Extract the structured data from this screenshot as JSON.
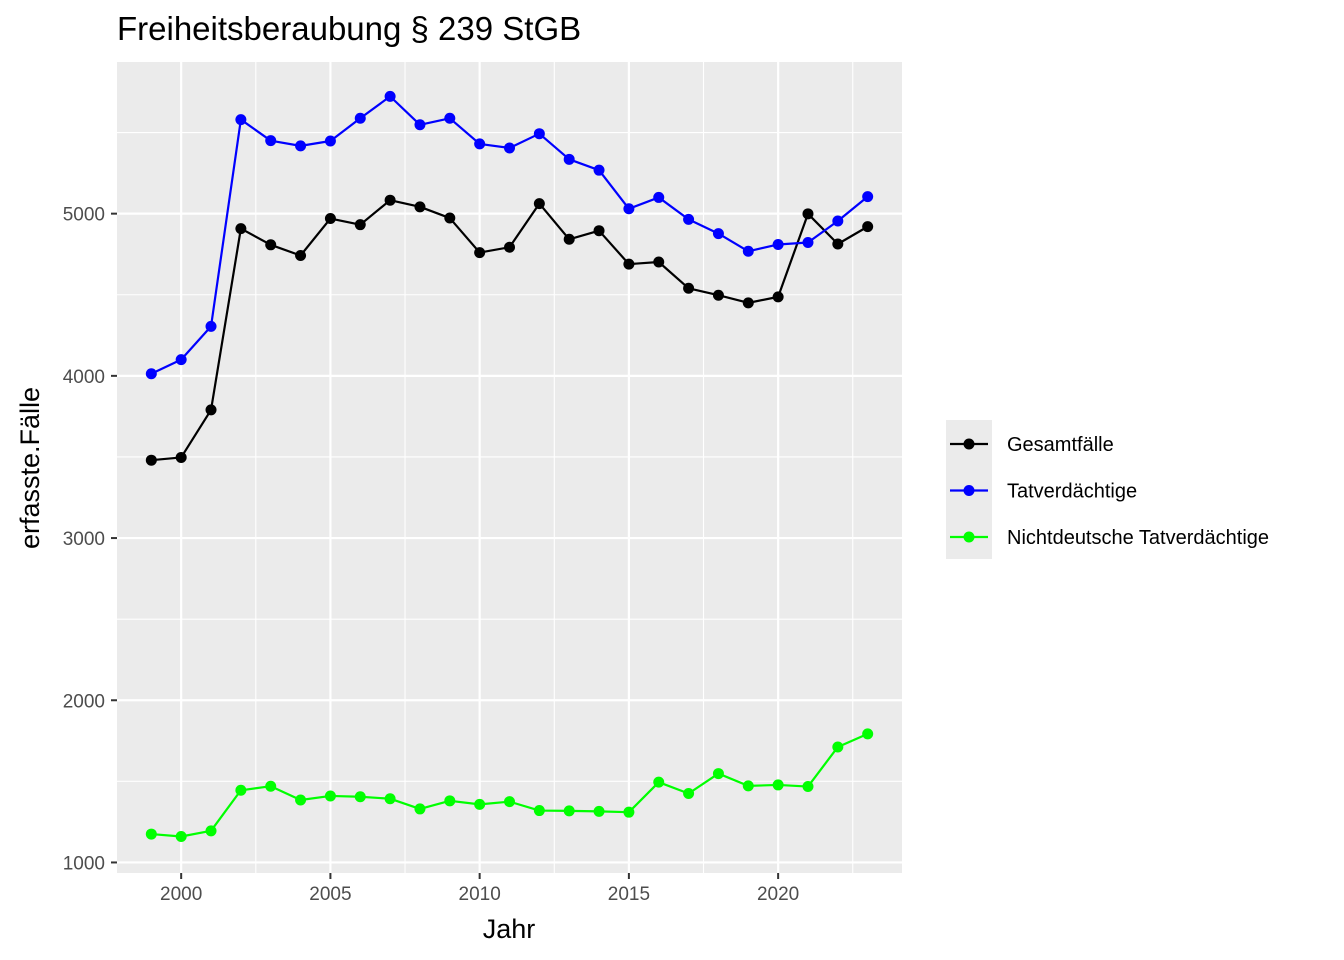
{
  "chart_data": {
    "type": "line",
    "title": "Freiheitsberaubung § 239 StGB",
    "xlabel": "Jahr",
    "ylabel": "erfasste.Fälle",
    "x": [
      1999,
      2000,
      2001,
      2002,
      2003,
      2004,
      2005,
      2006,
      2007,
      2008,
      2009,
      2010,
      2011,
      2012,
      2013,
      2014,
      2015,
      2016,
      2017,
      2018,
      2019,
      2020,
      2021,
      2022,
      2023
    ],
    "xlim": [
      1997.85,
      2024.15
    ],
    "ylim": [
      935,
      5935
    ],
    "x_ticks": [
      2000,
      2005,
      2010,
      2015,
      2020
    ],
    "x_tick_labels": [
      "2000",
      "2005",
      "2010",
      "2015",
      "2020"
    ],
    "y_ticks": [
      1000,
      2000,
      3000,
      4000,
      5000
    ],
    "y_tick_labels": [
      "1000",
      "2000",
      "3000",
      "4000",
      "5000"
    ],
    "grid": true,
    "legend_position": "right",
    "series": [
      {
        "name": "Gesamtfälle",
        "color": "#000000",
        "values": [
          3480,
          3497,
          3790,
          4908,
          4808,
          4742,
          4970,
          4932,
          5083,
          5042,
          4973,
          4760,
          4793,
          5062,
          4842,
          4895,
          4689,
          4702,
          4540,
          4497,
          4450,
          4487,
          4999,
          4813,
          4920
        ]
      },
      {
        "name": "Tatverdächtige",
        "color": "#0000ff",
        "values": [
          4013,
          4100,
          4305,
          5580,
          5450,
          5418,
          5448,
          5588,
          5723,
          5548,
          5588,
          5430,
          5405,
          5493,
          5335,
          5268,
          5030,
          5100,
          4965,
          4877,
          4768,
          4810,
          4822,
          4955,
          5105
        ]
      },
      {
        "name": "Nichtdeutsche Tatverdächtige",
        "color": "#00ff00",
        "values": [
          1175,
          1160,
          1195,
          1445,
          1470,
          1385,
          1410,
          1405,
          1393,
          1330,
          1380,
          1358,
          1375,
          1320,
          1318,
          1315,
          1310,
          1495,
          1425,
          1548,
          1472,
          1478,
          1468,
          1712,
          1793
        ]
      }
    ]
  }
}
